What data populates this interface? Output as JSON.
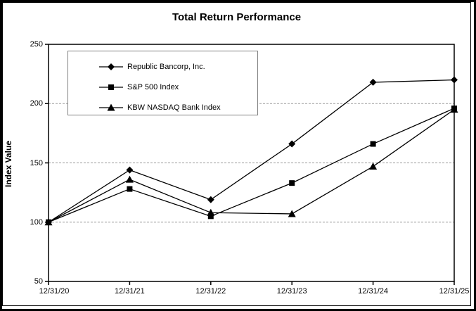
{
  "chart_data": {
    "type": "line",
    "title": "Total Return Performance",
    "ylabel": "Index Value",
    "xlabel": "",
    "categories": [
      "12/31/20",
      "12/31/21",
      "12/31/22",
      "12/31/23",
      "12/31/24",
      "12/31/25"
    ],
    "series": [
      {
        "name": "Republic Bancorp, Inc.",
        "marker": "diamond",
        "values": [
          100,
          144,
          119,
          166,
          218,
          220
        ]
      },
      {
        "name": "S&P 500 Index",
        "marker": "square",
        "values": [
          100,
          128,
          105,
          133,
          166,
          196
        ]
      },
      {
        "name": "KBW NASDAQ Bank Index",
        "marker": "triangle",
        "values": [
          100,
          136,
          108,
          107,
          147,
          195
        ]
      }
    ],
    "ylim": [
      50,
      250
    ],
    "yticks": [
      50,
      100,
      150,
      200,
      250
    ],
    "grid": "horizontal-dashed",
    "legend_position": "top-left-inside",
    "colors": {
      "line": "#000000",
      "marker": "#000000",
      "grid": "#999999",
      "axis": "#000000",
      "background": "#ffffff",
      "legend_border": "#808080"
    }
  }
}
